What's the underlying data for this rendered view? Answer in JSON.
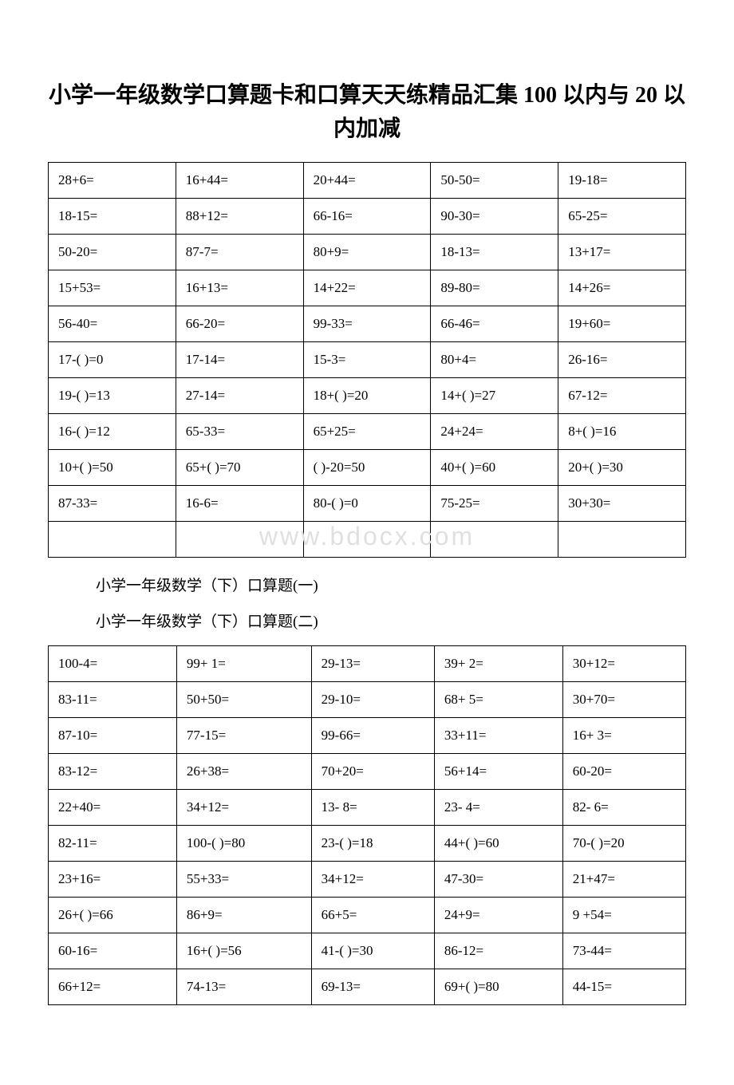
{
  "title": "小学一年级数学口算题卡和口算天天练精品汇集 100 以内与 20 以内加减",
  "subtitle1": "小学一年级数学（下）口算题(一)",
  "subtitle2": "小学一年级数学（下）口算题(二)",
  "watermark": "www.bdocx.com",
  "table1": {
    "columns": 5,
    "rows": [
      [
        "28+6=",
        "16+44=",
        "20+44=",
        "50-50=",
        "19-18="
      ],
      [
        "18-15=",
        "88+12=",
        "66-16=",
        "90-30=",
        "65-25="
      ],
      [
        "50-20=",
        "87-7=",
        "80+9=",
        "18-13=",
        "13+17="
      ],
      [
        "15+53=",
        "16+13=",
        "14+22=",
        "89-80=",
        "14+26="
      ],
      [
        "56-40=",
        "66-20=",
        "99-33=",
        "66-46=",
        "19+60="
      ],
      [
        "17-( )=0",
        "17-14=",
        "15-3=",
        "80+4=",
        "26-16="
      ],
      [
        "19-( )=13",
        "27-14=",
        "18+( )=20",
        "14+( )=27",
        "67-12="
      ],
      [
        "16-( )=12",
        "65-33=",
        "65+25=",
        "24+24=",
        "8+( )=16"
      ],
      [
        "10+( )=50",
        "65+( )=70",
        "( )-20=50",
        "40+( )=60",
        "20+( )=30"
      ],
      [
        "87-33=",
        "16-6=",
        "80-( )=0",
        "75-25=",
        "30+30="
      ],
      [
        "",
        "",
        "",
        "",
        ""
      ]
    ]
  },
  "table2": {
    "columns": 5,
    "rows": [
      [
        "100-4=",
        "99+ 1=",
        "29-13=",
        "39+ 2=",
        "30+12="
      ],
      [
        "83-11=",
        "50+50=",
        "29-10=",
        "68+ 5=",
        "30+70="
      ],
      [
        "87-10=",
        "77-15=",
        "99-66=",
        "33+11=",
        "16+ 3="
      ],
      [
        "83-12=",
        "26+38=",
        "70+20=",
        "56+14=",
        "60-20="
      ],
      [
        "22+40=",
        "34+12=",
        "13- 8=",
        "23- 4=",
        "82- 6="
      ],
      [
        "82-11=",
        "100-( )=80",
        "23-( )=18",
        "44+( )=60",
        "70-( )=20"
      ],
      [
        "23+16=",
        "55+33=",
        "34+12=",
        "47-30=",
        "21+47="
      ],
      [
        "26+( )=66",
        "86+9=",
        "66+5=",
        "24+9=",
        "9 +54="
      ],
      [
        "60-16=",
        "16+( )=56",
        "41-( )=30",
        "86-12=",
        "73-44="
      ],
      [
        "66+12=",
        "74-13=",
        "69-13=",
        "69+( )=80",
        "44-15="
      ]
    ]
  }
}
